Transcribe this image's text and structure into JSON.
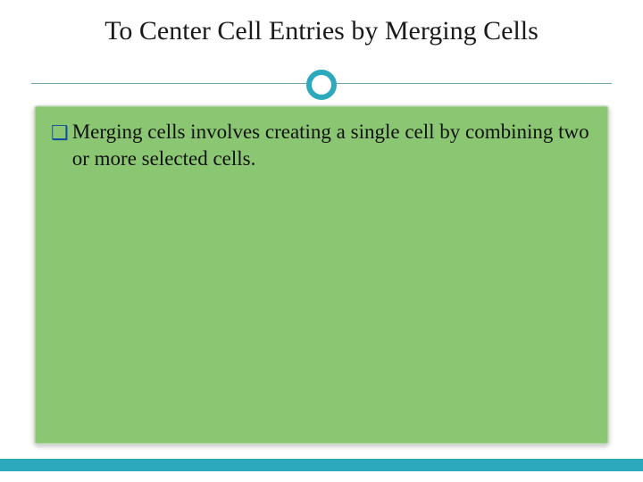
{
  "slide": {
    "title": "To Center Cell Entries by Merging Cells",
    "title_fontsize": 30,
    "title_color": "#1a1a1a",
    "ring_color": "#2ca9bc",
    "divider_color": "#6fa8a8",
    "content_bg": "#8bc673",
    "bullet_color": "#0b4aa0",
    "bullet_glyph": "❑",
    "body_text": "Merging cells involves creating a single cell by combining two or more selected cells.",
    "body_fontsize": 23,
    "body_color": "#111111",
    "bottom_bar_color": "#2ca9bc",
    "background_color": "#ffffff"
  }
}
